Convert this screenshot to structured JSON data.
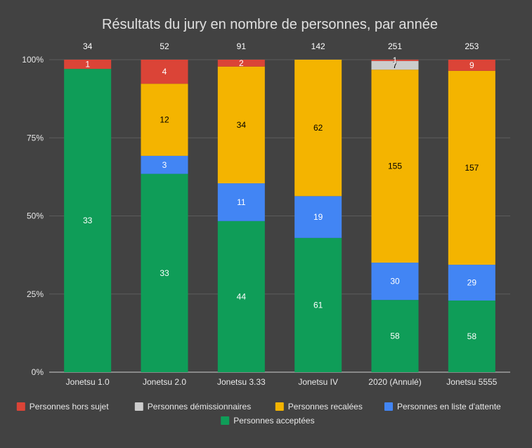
{
  "chart_data": {
    "type": "bar",
    "stacked": "percent",
    "title": "Résultats du jury en nombre de personnes, par année",
    "categories": [
      "Jonetsu 1.0",
      "Jonetsu 2.0",
      "Jonetsu 3.33",
      "Jonetsu IV",
      "2020 (Annulé)",
      "Jonetsu 5555"
    ],
    "totals": [
      "34",
      "52",
      "91",
      "142",
      "251",
      "253"
    ],
    "ylim": [
      0,
      100
    ],
    "y_ticks": [
      "0%",
      "25%",
      "50%",
      "75%",
      "100%"
    ],
    "grid": true,
    "legend_position": "bottom",
    "series": [
      {
        "name": "Personnes acceptées",
        "color": "#0f9d58",
        "label_color": "#ffffff",
        "values": [
          33,
          33,
          44,
          61,
          58,
          58
        ]
      },
      {
        "name": "Personnes en liste d'attente",
        "color": "#4285f4",
        "label_color": "#ffffff",
        "values": [
          0,
          3,
          11,
          19,
          30,
          29
        ]
      },
      {
        "name": "Personnes recalées",
        "color": "#f4b400",
        "label_color": "#000000",
        "values": [
          0,
          12,
          34,
          62,
          155,
          157
        ]
      },
      {
        "name": "Personnes démissionnaires",
        "color": "#cccccc",
        "label_color": "#000000",
        "values": [
          0,
          0,
          0,
          0,
          7,
          0
        ]
      },
      {
        "name": "Personnes hors sujet",
        "color": "#db4437",
        "label_color": "#ffffff",
        "values": [
          1,
          4,
          2,
          0,
          1,
          9
        ]
      }
    ],
    "legend_order": [
      4,
      3,
      2,
      1,
      0
    ]
  }
}
